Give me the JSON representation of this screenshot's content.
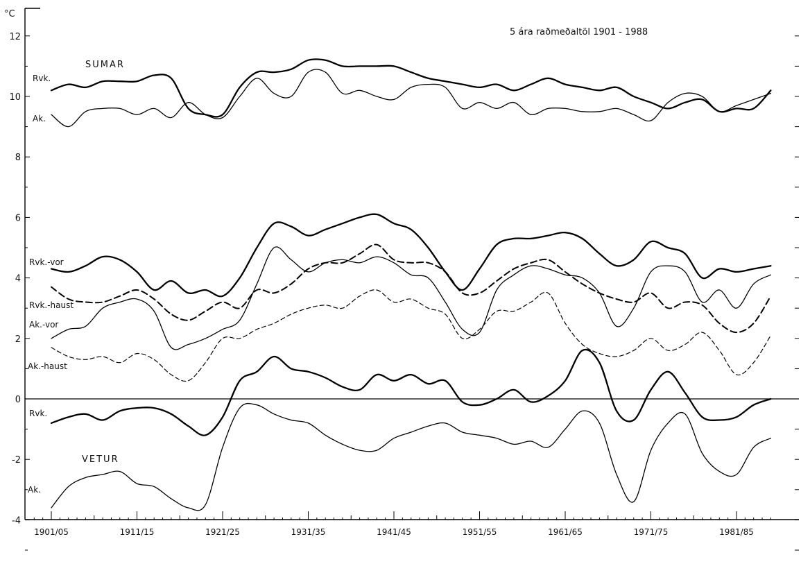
{
  "chart_data": {
    "type": "line",
    "title": "5 ára raðmeðaltöl 1901 - 1988",
    "ylabel": "°C",
    "xlabel": "",
    "xlim": [
      1901,
      1987.5
    ],
    "ylim": [
      -5,
      13
    ],
    "grid": false,
    "x_ticks": [
      {
        "x": 1903,
        "label": "1901/05"
      },
      {
        "x": 1913,
        "label": "1911/15"
      },
      {
        "x": 1923,
        "label": "1921/25"
      },
      {
        "x": 1933,
        "label": "1931/35"
      },
      {
        "x": 1943,
        "label": "1941/45"
      },
      {
        "x": 1953,
        "label": "1951/55"
      },
      {
        "x": 1963,
        "label": "1961/65"
      },
      {
        "x": 1973,
        "label": "1971/75"
      },
      {
        "x": 1983,
        "label": "1981/85"
      }
    ],
    "y_ticks": [
      -4,
      -2,
      0,
      2,
      4,
      6,
      8,
      10,
      12
    ],
    "reference_line_y": 0,
    "group_labels": {
      "summer": "SUMAR",
      "winter": "VETUR"
    },
    "series": [
      {
        "name": "Rvk.",
        "season": "SUMAR",
        "style": "solid-thick",
        "x": [
          1903,
          1905,
          1907,
          1909,
          1911,
          1913,
          1915,
          1917,
          1919,
          1921,
          1923,
          1925,
          1927,
          1929,
          1931,
          1933,
          1935,
          1937,
          1939,
          1941,
          1943,
          1945,
          1947,
          1949,
          1951,
          1953,
          1955,
          1957,
          1959,
          1961,
          1963,
          1965,
          1967,
          1969,
          1971,
          1973,
          1975,
          1977,
          1979,
          1981,
          1983,
          1985,
          1987
        ],
        "y": [
          10.2,
          10.4,
          10.3,
          10.5,
          10.5,
          10.5,
          10.7,
          10.6,
          9.6,
          9.4,
          9.4,
          10.3,
          10.8,
          10.8,
          10.9,
          11.2,
          11.2,
          11.0,
          11.0,
          11.0,
          11.0,
          10.8,
          10.6,
          10.5,
          10.4,
          10.3,
          10.4,
          10.2,
          10.4,
          10.6,
          10.4,
          10.3,
          10.2,
          10.3,
          10.0,
          9.8,
          9.6,
          9.8,
          9.9,
          9.5,
          9.6,
          9.6,
          10.2
        ]
      },
      {
        "name": "Ak.",
        "season": "SUMAR",
        "style": "solid-thin",
        "x": [
          1903,
          1905,
          1907,
          1909,
          1911,
          1913,
          1915,
          1917,
          1919,
          1921,
          1923,
          1925,
          1927,
          1929,
          1931,
          1933,
          1935,
          1937,
          1939,
          1941,
          1943,
          1945,
          1947,
          1949,
          1951,
          1953,
          1955,
          1957,
          1959,
          1961,
          1963,
          1965,
          1967,
          1969,
          1971,
          1973,
          1975,
          1977,
          1979,
          1981,
          1983,
          1985,
          1987
        ],
        "y": [
          9.4,
          9.0,
          9.5,
          9.6,
          9.6,
          9.4,
          9.6,
          9.3,
          9.8,
          9.4,
          9.3,
          10.0,
          10.6,
          10.1,
          10.0,
          10.8,
          10.8,
          10.1,
          10.2,
          10.0,
          9.9,
          10.3,
          10.4,
          10.3,
          9.6,
          9.8,
          9.6,
          9.8,
          9.4,
          9.6,
          9.6,
          9.5,
          9.5,
          9.6,
          9.4,
          9.2,
          9.8,
          10.1,
          10.0,
          9.5,
          9.7,
          9.9,
          10.1
        ]
      },
      {
        "name": "Rvk.-vor",
        "season": "vor",
        "style": "solid-thick",
        "x": [
          1903,
          1905,
          1907,
          1909,
          1911,
          1913,
          1915,
          1917,
          1919,
          1921,
          1923,
          1925,
          1927,
          1929,
          1931,
          1933,
          1935,
          1937,
          1939,
          1941,
          1943,
          1945,
          1947,
          1949,
          1951,
          1953,
          1955,
          1957,
          1959,
          1961,
          1963,
          1965,
          1967,
          1969,
          1971,
          1973,
          1975,
          1977,
          1979,
          1981,
          1983,
          1985,
          1987
        ],
        "y": [
          4.3,
          4.2,
          4.4,
          4.7,
          4.6,
          4.2,
          3.6,
          3.9,
          3.5,
          3.6,
          3.4,
          4.0,
          5.0,
          5.8,
          5.7,
          5.4,
          5.6,
          5.8,
          6.0,
          6.1,
          5.8,
          5.6,
          5.0,
          4.2,
          3.6,
          4.3,
          5.1,
          5.3,
          5.3,
          5.4,
          5.5,
          5.3,
          4.8,
          4.4,
          4.6,
          5.2,
          5.0,
          4.8,
          4.0,
          4.3,
          4.2,
          4.3,
          4.4
        ]
      },
      {
        "name": "Rvk.-haust",
        "season": "haust",
        "style": "dashed-thick",
        "x": [
          1903,
          1905,
          1907,
          1909,
          1911,
          1913,
          1915,
          1917,
          1919,
          1921,
          1923,
          1925,
          1927,
          1929,
          1931,
          1933,
          1935,
          1937,
          1939,
          1941,
          1943,
          1945,
          1947,
          1949,
          1951,
          1953,
          1955,
          1957,
          1959,
          1961,
          1963,
          1965,
          1967,
          1969,
          1971,
          1973,
          1975,
          1977,
          1979,
          1981,
          1983,
          1985,
          1987
        ],
        "y": [
          3.7,
          3.3,
          3.2,
          3.2,
          3.4,
          3.6,
          3.3,
          2.8,
          2.6,
          2.9,
          3.2,
          3.0,
          3.6,
          3.5,
          3.8,
          4.3,
          4.5,
          4.5,
          4.8,
          5.1,
          4.6,
          4.5,
          4.5,
          4.2,
          3.5,
          3.5,
          3.9,
          4.3,
          4.5,
          4.6,
          4.2,
          3.8,
          3.5,
          3.3,
          3.2,
          3.5,
          3.0,
          3.2,
          3.1,
          2.5,
          2.2,
          2.5,
          3.4
        ]
      },
      {
        "name": "Ak.-vor",
        "season": "vor",
        "style": "solid-thin",
        "x": [
          1903,
          1905,
          1907,
          1909,
          1911,
          1913,
          1915,
          1917,
          1919,
          1921,
          1923,
          1925,
          1927,
          1929,
          1931,
          1933,
          1935,
          1937,
          1939,
          1941,
          1943,
          1945,
          1947,
          1949,
          1951,
          1953,
          1955,
          1957,
          1959,
          1961,
          1963,
          1965,
          1967,
          1969,
          1971,
          1973,
          1975,
          1977,
          1979,
          1981,
          1983,
          1985,
          1987
        ],
        "y": [
          2.0,
          2.3,
          2.4,
          3.0,
          3.2,
          3.3,
          2.9,
          1.7,
          1.8,
          2.0,
          2.3,
          2.6,
          3.8,
          5.0,
          4.6,
          4.2,
          4.5,
          4.6,
          4.5,
          4.7,
          4.5,
          4.1,
          4.0,
          3.2,
          2.3,
          2.2,
          3.6,
          4.1,
          4.4,
          4.3,
          4.1,
          4.0,
          3.5,
          2.4,
          3.0,
          4.2,
          4.4,
          4.2,
          3.2,
          3.6,
          3.0,
          3.8,
          4.1
        ]
      },
      {
        "name": "Ak.-haust",
        "season": "haust",
        "style": "dashed-thin",
        "x": [
          1903,
          1905,
          1907,
          1909,
          1911,
          1913,
          1915,
          1917,
          1919,
          1921,
          1923,
          1925,
          1927,
          1929,
          1931,
          1933,
          1935,
          1937,
          1939,
          1941,
          1943,
          1945,
          1947,
          1949,
          1951,
          1953,
          1955,
          1957,
          1959,
          1961,
          1963,
          1965,
          1967,
          1969,
          1971,
          1973,
          1975,
          1977,
          1979,
          1981,
          1983,
          1985,
          1987
        ],
        "y": [
          1.7,
          1.4,
          1.3,
          1.4,
          1.2,
          1.5,
          1.3,
          0.8,
          0.6,
          1.2,
          2.0,
          2.0,
          2.3,
          2.5,
          2.8,
          3.0,
          3.1,
          3.0,
          3.4,
          3.6,
          3.2,
          3.3,
          3.0,
          2.8,
          2.0,
          2.3,
          2.9,
          2.9,
          3.2,
          3.5,
          2.5,
          1.8,
          1.5,
          1.4,
          1.6,
          2.0,
          1.6,
          1.8,
          2.2,
          1.6,
          0.8,
          1.2,
          2.1
        ]
      },
      {
        "name": "Rvk.",
        "season": "VETUR",
        "style": "solid-thick",
        "x": [
          1903,
          1905,
          1907,
          1909,
          1911,
          1913,
          1915,
          1917,
          1919,
          1921,
          1923,
          1925,
          1927,
          1929,
          1931,
          1933,
          1935,
          1937,
          1939,
          1941,
          1943,
          1945,
          1947,
          1949,
          1951,
          1953,
          1955,
          1957,
          1959,
          1961,
          1963,
          1965,
          1967,
          1969,
          1971,
          1973,
          1975,
          1977,
          1979,
          1981,
          1983,
          1985,
          1987
        ],
        "y": [
          -0.8,
          -0.6,
          -0.5,
          -0.7,
          -0.4,
          -0.3,
          -0.3,
          -0.5,
          -0.9,
          -1.2,
          -0.6,
          0.6,
          0.9,
          1.4,
          1.0,
          0.9,
          0.7,
          0.4,
          0.3,
          0.8,
          0.6,
          0.8,
          0.5,
          0.6,
          -0.1,
          -0.2,
          0.0,
          0.3,
          -0.1,
          0.1,
          0.6,
          1.6,
          1.2,
          -0.4,
          -0.7,
          0.3,
          0.9,
          0.2,
          -0.6,
          -0.7,
          -0.6,
          -0.2,
          0.0
        ]
      },
      {
        "name": "Ak.",
        "season": "VETUR",
        "style": "solid-thin",
        "x": [
          1903,
          1905,
          1907,
          1909,
          1911,
          1913,
          1915,
          1917,
          1919,
          1921,
          1923,
          1925,
          1927,
          1929,
          1931,
          1933,
          1935,
          1937,
          1939,
          1941,
          1943,
          1945,
          1947,
          1949,
          1951,
          1953,
          1955,
          1957,
          1959,
          1961,
          1963,
          1965,
          1967,
          1969,
          1971,
          1973,
          1975,
          1977,
          1979,
          1981,
          1983,
          1985,
          1987
        ],
        "y": [
          -3.6,
          -2.9,
          -2.6,
          -2.5,
          -2.4,
          -2.8,
          -2.9,
          -3.3,
          -3.6,
          -3.5,
          -1.6,
          -0.3,
          -0.2,
          -0.5,
          -0.7,
          -0.8,
          -1.2,
          -1.5,
          -1.7,
          -1.7,
          -1.3,
          -1.1,
          -0.9,
          -0.8,
          -1.1,
          -1.2,
          -1.3,
          -1.5,
          -1.4,
          -1.6,
          -1.0,
          -0.4,
          -0.8,
          -2.5,
          -3.4,
          -1.7,
          -0.8,
          -0.5,
          -1.8,
          -2.4,
          -2.5,
          -1.6,
          -1.3
        ]
      }
    ]
  }
}
